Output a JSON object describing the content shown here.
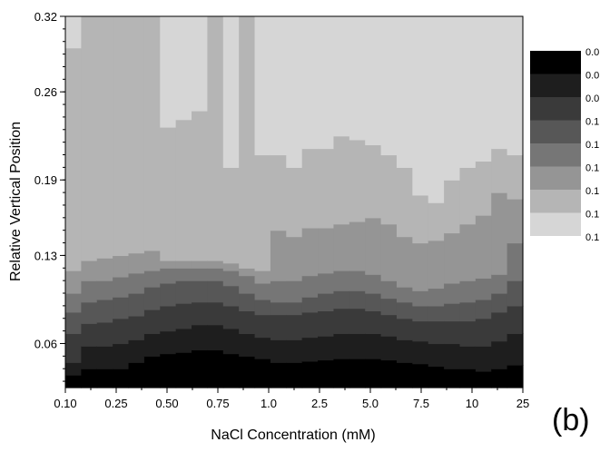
{
  "chart_data": {
    "type": "heatmap",
    "title": "",
    "xlabel": "NaCl Concentration (mM)",
    "ylabel": "Relative Vertical Position",
    "panel_label": "(b)",
    "x_ticks": [
      "0.10",
      "0.25",
      "0.50",
      "0.75",
      "1.0",
      "2.5",
      "5.0",
      "7.5",
      "10",
      "25"
    ],
    "y_ticks": [
      "0.06",
      "0.13",
      "0.19",
      "0.26",
      "0.32"
    ],
    "ylim": [
      0.025,
      0.32
    ],
    "grey_levels": [
      "#000000",
      "#1e1e1e",
      "#3a3a3a",
      "#575757",
      "#767676",
      "#959595",
      "#b5b5b5",
      "#d6d6d6",
      "#ffffff"
    ],
    "legend": {
      "colors": [
        "#000000",
        "#1e1e1e",
        "#3a3a3a",
        "#575757",
        "#767676",
        "#959595",
        "#b5b5b5",
        "#d6d6d6"
      ],
      "labels": [
        "0.0",
        "0.0",
        "0.0",
        "0.1",
        "0.1",
        "0.1",
        "0.1",
        "0.1",
        "0.1"
      ]
    },
    "columns": [
      {
        "x": 0.1,
        "bounds": [
          0.025,
          0.035,
          0.045,
          0.068,
          0.085,
          0.1,
          0.118,
          0.295,
          0.32
        ]
      },
      {
        "x": 0.13,
        "bounds": [
          0.025,
          0.04,
          0.058,
          0.076,
          0.093,
          0.11,
          0.126,
          0.32,
          0.32
        ]
      },
      {
        "x": 0.16,
        "bounds": [
          0.025,
          0.04,
          0.058,
          0.077,
          0.095,
          0.11,
          0.128,
          0.32,
          0.32
        ]
      },
      {
        "x": 0.2,
        "bounds": [
          0.025,
          0.04,
          0.06,
          0.08,
          0.097,
          0.113,
          0.13,
          0.32,
          0.32
        ]
      },
      {
        "x": 0.25,
        "bounds": [
          0.025,
          0.045,
          0.063,
          0.082,
          0.1,
          0.116,
          0.132,
          0.32,
          0.32
        ]
      },
      {
        "x": 0.3,
        "bounds": [
          0.025,
          0.05,
          0.068,
          0.087,
          0.105,
          0.118,
          0.134,
          0.32,
          0.32
        ]
      },
      {
        "x": 0.4,
        "bounds": [
          0.025,
          0.052,
          0.07,
          0.09,
          0.108,
          0.12,
          0.126,
          0.232,
          0.32
        ]
      },
      {
        "x": 0.5,
        "bounds": [
          0.025,
          0.053,
          0.072,
          0.092,
          0.11,
          0.12,
          0.126,
          0.238,
          0.32
        ]
      },
      {
        "x": 0.6,
        "bounds": [
          0.025,
          0.055,
          0.075,
          0.093,
          0.11,
          0.12,
          0.126,
          0.245,
          0.32
        ]
      },
      {
        "x": 0.7,
        "bounds": [
          0.025,
          0.055,
          0.075,
          0.093,
          0.11,
          0.12,
          0.126,
          0.32,
          0.32
        ]
      },
      {
        "x": 0.75,
        "bounds": [
          0.025,
          0.052,
          0.072,
          0.09,
          0.106,
          0.118,
          0.124,
          0.2,
          0.32
        ]
      },
      {
        "x": 0.85,
        "bounds": [
          0.025,
          0.05,
          0.068,
          0.086,
          0.1,
          0.114,
          0.12,
          0.32,
          0.32
        ]
      },
      {
        "x": 0.9,
        "bounds": [
          0.025,
          0.048,
          0.065,
          0.083,
          0.095,
          0.108,
          0.118,
          0.21,
          0.32
        ]
      },
      {
        "x": 1.0,
        "bounds": [
          0.025,
          0.045,
          0.063,
          0.083,
          0.093,
          0.11,
          0.15,
          0.21,
          0.32
        ]
      },
      {
        "x": 1.5,
        "bounds": [
          0.025,
          0.045,
          0.063,
          0.083,
          0.093,
          0.11,
          0.145,
          0.2,
          0.32
        ]
      },
      {
        "x": 2.0,
        "bounds": [
          0.025,
          0.046,
          0.065,
          0.085,
          0.097,
          0.114,
          0.152,
          0.215,
          0.32
        ]
      },
      {
        "x": 2.5,
        "bounds": [
          0.025,
          0.047,
          0.066,
          0.086,
          0.1,
          0.116,
          0.152,
          0.215,
          0.32
        ]
      },
      {
        "x": 3.0,
        "bounds": [
          0.025,
          0.048,
          0.068,
          0.088,
          0.102,
          0.118,
          0.155,
          0.225,
          0.32
        ]
      },
      {
        "x": 4.0,
        "bounds": [
          0.025,
          0.048,
          0.068,
          0.088,
          0.102,
          0.118,
          0.157,
          0.222,
          0.32
        ]
      },
      {
        "x": 5.0,
        "bounds": [
          0.025,
          0.048,
          0.068,
          0.086,
          0.1,
          0.115,
          0.16,
          0.218,
          0.32
        ]
      },
      {
        "x": 6.0,
        "bounds": [
          0.025,
          0.047,
          0.066,
          0.083,
          0.096,
          0.11,
          0.155,
          0.21,
          0.32
        ]
      },
      {
        "x": 7.0,
        "bounds": [
          0.025,
          0.045,
          0.063,
          0.08,
          0.093,
          0.105,
          0.145,
          0.2,
          0.32
        ]
      },
      {
        "x": 7.5,
        "bounds": [
          0.025,
          0.044,
          0.062,
          0.078,
          0.09,
          0.102,
          0.14,
          0.178,
          0.32
        ]
      },
      {
        "x": 8.5,
        "bounds": [
          0.025,
          0.042,
          0.06,
          0.078,
          0.09,
          0.104,
          0.142,
          0.172,
          0.32
        ]
      },
      {
        "x": 9.0,
        "bounds": [
          0.025,
          0.04,
          0.06,
          0.078,
          0.092,
          0.108,
          0.148,
          0.19,
          0.32
        ]
      },
      {
        "x": 10,
        "bounds": [
          0.025,
          0.04,
          0.058,
          0.078,
          0.093,
          0.11,
          0.155,
          0.2,
          0.32
        ]
      },
      {
        "x": 12,
        "bounds": [
          0.025,
          0.038,
          0.058,
          0.08,
          0.095,
          0.112,
          0.162,
          0.205,
          0.32
        ]
      },
      {
        "x": 15,
        "bounds": [
          0.025,
          0.04,
          0.062,
          0.085,
          0.1,
          0.115,
          0.18,
          0.215,
          0.32
        ]
      },
      {
        "x": 25,
        "bounds": [
          0.025,
          0.043,
          0.068,
          0.09,
          0.11,
          0.14,
          0.175,
          0.21,
          0.32
        ]
      }
    ]
  }
}
